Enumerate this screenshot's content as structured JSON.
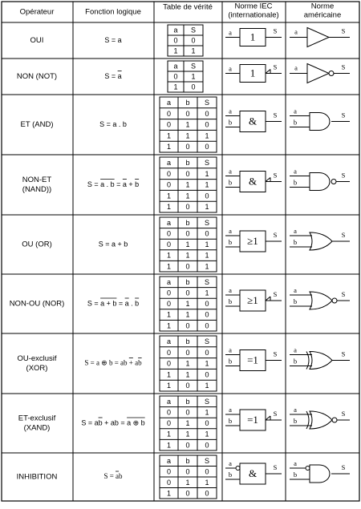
{
  "headers": {
    "operator": "Opérateur",
    "function": "Fonction logique",
    "truth": "Table de vérité",
    "iec": [
      "Norme IEC",
      "(internationale)"
    ],
    "us": [
      "Norme",
      "américaine"
    ]
  },
  "rows": [
    {
      "name": [
        "OUI"
      ],
      "formula": "S = a",
      "table_cols": [
        "a",
        "S"
      ],
      "table": [
        [
          "0",
          "0"
        ],
        [
          "1",
          "1"
        ]
      ],
      "iec_symbol": "1",
      "iec_inputs": [
        "a"
      ],
      "iec_output": "S",
      "us_inputs": [
        "a"
      ],
      "us_output": "S",
      "us_gate": "buffer-gate-icon"
    },
    {
      "name": [
        "NON (NOT)"
      ],
      "formula": "S = a",
      "table_cols": [
        "a",
        "S"
      ],
      "table": [
        [
          "0",
          "1"
        ],
        [
          "1",
          "0"
        ]
      ],
      "iec_symbol": "1",
      "iec_inputs": [
        "a"
      ],
      "iec_output": "S",
      "us_inputs": [
        "a"
      ],
      "us_output": "S",
      "us_gate": "not-gate-icon"
    },
    {
      "name": [
        "ET (AND)"
      ],
      "formula": "S = a . b",
      "table_cols": [
        "a",
        "b",
        "S"
      ],
      "table": [
        [
          "0",
          "0",
          "0"
        ],
        [
          "0",
          "1",
          "0"
        ],
        [
          "1",
          "1",
          "1"
        ],
        [
          "1",
          "0",
          "0"
        ]
      ],
      "iec_symbol": "&",
      "iec_inputs": [
        "a",
        "b"
      ],
      "iec_output": "S",
      "us_inputs": [
        "a",
        "b"
      ],
      "us_output": "S",
      "us_gate": "and-gate-icon"
    },
    {
      "name": [
        "NON-ET",
        "(NAND))"
      ],
      "formula": "S = a . b = a + b",
      "table_cols": [
        "a",
        "b",
        "S"
      ],
      "table": [
        [
          "0",
          "0",
          "1"
        ],
        [
          "0",
          "1",
          "1"
        ],
        [
          "1",
          "1",
          "0"
        ],
        [
          "1",
          "0",
          "1"
        ]
      ],
      "iec_symbol": "&",
      "iec_inputs": [
        "a",
        "b"
      ],
      "iec_output": "S",
      "us_inputs": [
        "a",
        "b"
      ],
      "us_output": "S",
      "us_gate": "nand-gate-icon"
    },
    {
      "name": [
        "OU (OR)"
      ],
      "formula": "S = a + b",
      "table_cols": [
        "a",
        "b",
        "S"
      ],
      "table": [
        [
          "0",
          "0",
          "0"
        ],
        [
          "0",
          "1",
          "1"
        ],
        [
          "1",
          "1",
          "1"
        ],
        [
          "1",
          "0",
          "1"
        ]
      ],
      "iec_symbol": "≥1",
      "iec_inputs": [
        "a",
        "b"
      ],
      "iec_output": "S",
      "us_inputs": [
        "a",
        "b"
      ],
      "us_output": "S",
      "us_gate": "or-gate-icon"
    },
    {
      "name": [
        "NON-OU (NOR)"
      ],
      "formula": "S = a + b = a . b",
      "table_cols": [
        "a",
        "b",
        "S"
      ],
      "table": [
        [
          "0",
          "0",
          "1"
        ],
        [
          "0",
          "1",
          "0"
        ],
        [
          "1",
          "1",
          "0"
        ],
        [
          "1",
          "0",
          "0"
        ]
      ],
      "iec_symbol": "≥1",
      "iec_inputs": [
        "a",
        "b"
      ],
      "iec_output": "S",
      "us_inputs": [
        "a",
        "b"
      ],
      "us_output": "S",
      "us_gate": "nor-gate-icon"
    },
    {
      "name": [
        "OU-exclusif",
        "(XOR)"
      ],
      "formula": "S = a ⊕ b = ab + ab",
      "table_cols": [
        "a",
        "b",
        "S"
      ],
      "table": [
        [
          "0",
          "0",
          "0"
        ],
        [
          "0",
          "1",
          "1"
        ],
        [
          "1",
          "1",
          "0"
        ],
        [
          "1",
          "0",
          "1"
        ]
      ],
      "iec_symbol": "=1",
      "iec_inputs": [
        "a",
        "b"
      ],
      "iec_output": "S",
      "us_inputs": [
        "a",
        "b"
      ],
      "us_output": "S",
      "us_gate": "xor-gate-icon"
    },
    {
      "name": [
        "ET-exclusif",
        "(XAND)"
      ],
      "formula": "S = ab + ab = a ⊕ b",
      "table_cols": [
        "a",
        "b",
        "S"
      ],
      "table": [
        [
          "0",
          "0",
          "1"
        ],
        [
          "0",
          "1",
          "0"
        ],
        [
          "1",
          "1",
          "1"
        ],
        [
          "1",
          "0",
          "0"
        ]
      ],
      "iec_symbol": "=1",
      "iec_inputs": [
        "a",
        "b"
      ],
      "iec_output": "S",
      "us_inputs": [
        "a",
        "b"
      ],
      "us_output": "S",
      "us_gate": "xnor-gate-icon"
    },
    {
      "name": [
        "INHIBITION"
      ],
      "formula": "S = ab",
      "table_cols": [
        "a",
        "b",
        "S"
      ],
      "table": [
        [
          "0",
          "0",
          "0"
        ],
        [
          "0",
          "1",
          "1"
        ],
        [
          "1",
          "0",
          "0"
        ]
      ],
      "iec_symbol": "&",
      "iec_inputs": [
        "a",
        "b"
      ],
      "iec_output": "S",
      "us_inputs": [
        "a",
        "b"
      ],
      "us_output": "S",
      "us_gate": "inhibit-gate-icon"
    }
  ]
}
